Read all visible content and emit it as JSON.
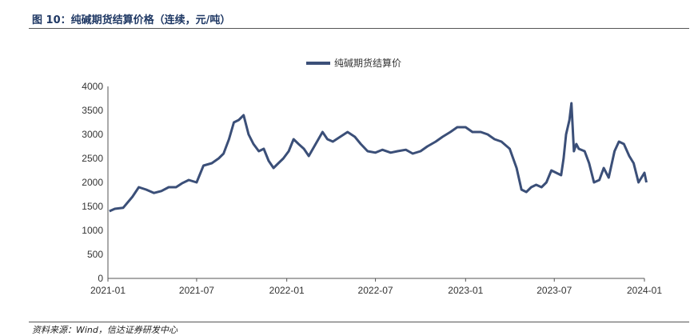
{
  "figure": {
    "title": "图 10：纯碱期货结算价格（连续，元/吨）",
    "source": "资料来源：Wind，信达证券研发中心"
  },
  "colors": {
    "series": "#3b4f78",
    "axis": "#555555"
  },
  "chart_data": {
    "type": "line",
    "xlabel": "",
    "ylabel": "",
    "ylim": [
      0,
      4000
    ],
    "yticks": [
      0,
      500,
      1000,
      1500,
      2000,
      2500,
      3000,
      3500,
      4000
    ],
    "xlim": [
      "2021-01",
      "2024-01"
    ],
    "xticks": [
      "2021-01",
      "2021-07",
      "2022-01",
      "2022-07",
      "2023-01",
      "2023-07",
      "2024-01"
    ],
    "legend": "top-center",
    "grid": false,
    "series": [
      {
        "name": "纯碱期货结算价",
        "x": [
          "2021-01-04",
          "2021-01-15",
          "2021-02-01",
          "2021-02-20",
          "2021-03-05",
          "2021-03-20",
          "2021-04-05",
          "2021-04-20",
          "2021-05-05",
          "2021-05-20",
          "2021-06-01",
          "2021-06-15",
          "2021-07-01",
          "2021-07-15",
          "2021-08-01",
          "2021-08-15",
          "2021-08-25",
          "2021-09-05",
          "2021-09-15",
          "2021-09-25",
          "2021-10-05",
          "2021-10-15",
          "2021-10-25",
          "2021-11-05",
          "2021-11-15",
          "2021-11-25",
          "2021-12-05",
          "2021-12-15",
          "2021-12-25",
          "2022-01-05",
          "2022-01-15",
          "2022-01-25",
          "2022-02-05",
          "2022-02-15",
          "2022-03-01",
          "2022-03-15",
          "2022-03-25",
          "2022-04-05",
          "2022-04-20",
          "2022-05-05",
          "2022-05-20",
          "2022-06-01",
          "2022-06-15",
          "2022-07-01",
          "2022-07-15",
          "2022-08-01",
          "2022-08-15",
          "2022-09-01",
          "2022-09-15",
          "2022-10-01",
          "2022-10-15",
          "2022-11-01",
          "2022-11-15",
          "2022-12-01",
          "2022-12-15",
          "2023-01-01",
          "2023-01-15",
          "2023-02-01",
          "2023-02-15",
          "2023-03-01",
          "2023-03-15",
          "2023-04-01",
          "2023-04-15",
          "2023-04-25",
          "2023-05-05",
          "2023-05-15",
          "2023-05-25",
          "2023-06-05",
          "2023-06-15",
          "2023-06-25",
          "2023-07-05",
          "2023-07-15",
          "2023-07-20",
          "2023-07-25",
          "2023-08-01",
          "2023-08-05",
          "2023-08-10",
          "2023-08-15",
          "2023-08-20",
          "2023-09-01",
          "2023-09-10",
          "2023-09-20",
          "2023-10-01",
          "2023-10-10",
          "2023-10-20",
          "2023-11-01",
          "2023-11-10",
          "2023-11-20",
          "2023-12-01",
          "2023-12-10",
          "2023-12-20",
          "2024-01-01",
          "2024-01-05"
        ],
        "y": [
          1400,
          1450,
          1470,
          1700,
          1900,
          1850,
          1780,
          1820,
          1900,
          1900,
          1980,
          2050,
          2000,
          2350,
          2400,
          2500,
          2600,
          2900,
          3250,
          3300,
          3400,
          3000,
          2800,
          2650,
          2700,
          2450,
          2300,
          2400,
          2500,
          2650,
          2900,
          2800,
          2700,
          2550,
          2800,
          3050,
          2900,
          2850,
          2950,
          3050,
          2950,
          2800,
          2650,
          2620,
          2680,
          2620,
          2650,
          2680,
          2600,
          2650,
          2750,
          2850,
          2950,
          3050,
          3150,
          3150,
          3050,
          3050,
          3000,
          2900,
          2850,
          2700,
          2300,
          1850,
          1800,
          1900,
          1950,
          1900,
          2000,
          2250,
          2200,
          2150,
          2500,
          3000,
          3300,
          3650,
          2650,
          2800,
          2700,
          2650,
          2400,
          2000,
          2050,
          2300,
          2100,
          2650,
          2850,
          2800,
          2550,
          2400,
          2000,
          2200,
          2000
        ]
      }
    ]
  }
}
